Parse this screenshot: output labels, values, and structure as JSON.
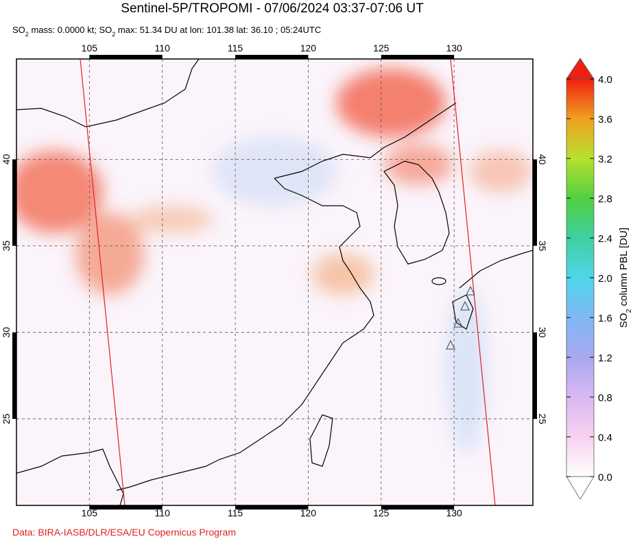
{
  "header": {
    "title": "Sentinel-5P/TROPOMI - 07/06/2024 03:37-07:06 UT",
    "subtitle": [
      "SO",
      "2",
      " mass: 0.0000 kt; SO",
      "2",
      " max: 51.34 DU at lon: 101.38 lat: 36.10 ; 05:24UTC"
    ]
  },
  "map": {
    "lonlim": [
      100,
      135.4
    ],
    "latlim": [
      20,
      45.8
    ],
    "lonticks": [
      105,
      110,
      115,
      120,
      125,
      130
    ],
    "latticks": [
      25,
      30,
      35,
      40
    ]
  },
  "colorbar": {
    "label": [
      "SO",
      "2",
      " column PBL [DU]"
    ],
    "lim": [
      0,
      4
    ],
    "ticks": [
      {
        "value": 0,
        "label": "0.0"
      },
      {
        "value": 0.4,
        "label": "0.4"
      },
      {
        "value": 0.8,
        "label": "0.8"
      },
      {
        "value": 1.2,
        "label": "1.2"
      },
      {
        "value": 1.6,
        "label": "1.6"
      },
      {
        "value": 2,
        "label": "2.0"
      },
      {
        "value": 2.4,
        "label": "2.4"
      },
      {
        "value": 2.8,
        "label": "2.8"
      },
      {
        "value": 3.2,
        "label": "3.2"
      },
      {
        "value": 3.6,
        "label": "3.6"
      },
      {
        "value": 4,
        "label": "4.0"
      }
    ]
  },
  "footer": "Data: BIRA-IASB/DLR/ESA/EU Copernicus Program"
}
